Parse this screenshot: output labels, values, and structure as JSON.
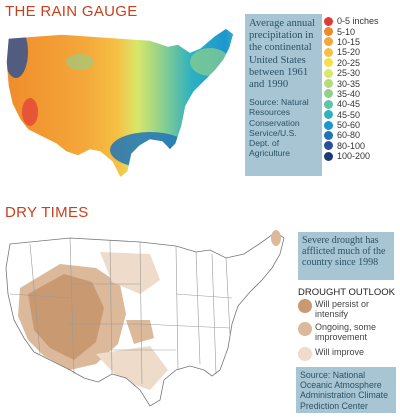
{
  "rain_gauge": {
    "title": "THE RAIN GAUGE",
    "description": "Average annual precipitation in the continental United States between 1961 and 1990",
    "source": "Source: Natural Resources Conservation Service/U.S. Dept. of Agriculture",
    "legend": [
      {
        "label": "0-5 inches",
        "color": "#e23a3a"
      },
      {
        "label": "5-10",
        "color": "#ef8a2a"
      },
      {
        "label": "10-15",
        "color": "#f4a83a"
      },
      {
        "label": "15-20",
        "color": "#f6c043"
      },
      {
        "label": "20-25",
        "color": "#f4e04a"
      },
      {
        "label": "25-30",
        "color": "#d9e76a"
      },
      {
        "label": "30-35",
        "color": "#b4dc7a"
      },
      {
        "label": "35-40",
        "color": "#8fd08c"
      },
      {
        "label": "40-45",
        "color": "#5fc3a8"
      },
      {
        "label": "45-50",
        "color": "#2fb1c0"
      },
      {
        "label": "50-60",
        "color": "#1c97cf"
      },
      {
        "label": "60-80",
        "color": "#1f74b8"
      },
      {
        "label": "80-100",
        "color": "#2b4f96"
      },
      {
        "label": "100-200",
        "color": "#1a3a78"
      }
    ]
  },
  "dry_times": {
    "title": "DRY TIMES",
    "description": "Severe drought has afflicted much of the country since 1998",
    "outlook_title": "DROUGHT OUTLOOK",
    "outlook": [
      {
        "label": "Will persist or intensify",
        "color": "#c99972"
      },
      {
        "label": "Ongoing, some improvement",
        "color": "#dcb99a"
      },
      {
        "label": "Will improve",
        "color": "#eedbca"
      }
    ],
    "source": "Source: National Oceanic Atmosphere Administration Climate Prediction Center"
  }
}
